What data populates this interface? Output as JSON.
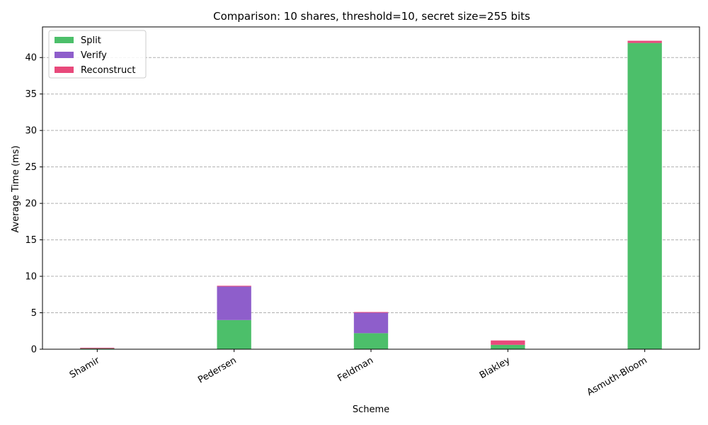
{
  "chart_data": {
    "type": "bar",
    "stacked": true,
    "title": "Comparison: 10 shares, threshold=10, secret size=255 bits",
    "xlabel": "Scheme",
    "ylabel": "Average Time (ms)",
    "categories": [
      "Shamir",
      "Pedersen",
      "Feldman",
      "Blakley",
      "Asmuth-Bloom"
    ],
    "series": [
      {
        "name": "Split",
        "color": "#4cbf6a",
        "values": [
          0.1,
          4.0,
          2.2,
          0.6,
          42.0
        ]
      },
      {
        "name": "Verify",
        "color": "#8e5ecb",
        "values": [
          0.0,
          4.6,
          2.8,
          0.0,
          0.0
        ]
      },
      {
        "name": "Reconstruct",
        "color": "#e8497b",
        "values": [
          0.1,
          0.1,
          0.1,
          0.6,
          0.3
        ]
      }
    ],
    "ylim": [
      0,
      44.2
    ],
    "yticks": [
      0,
      5,
      10,
      15,
      20,
      25,
      30,
      35,
      40
    ],
    "grid": "y-dashed",
    "legend_position": "top-left"
  }
}
